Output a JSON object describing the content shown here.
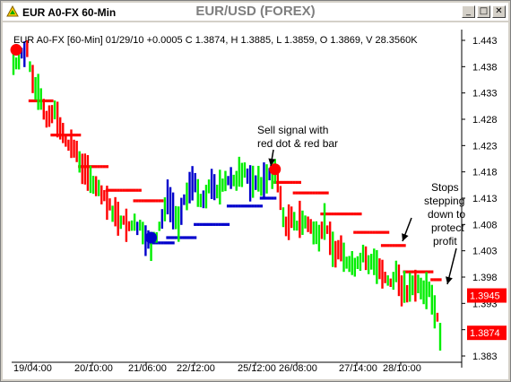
{
  "window": {
    "label": "EUR A0-FX 60-Min",
    "title": "EUR/USD (FOREX)",
    "buttons": {
      "minimize": "_",
      "maximize": "□",
      "close": "✕"
    }
  },
  "chart_data": {
    "type": "line",
    "info_line": "EUR A0-FX [60-Min] 01/29/10  +0.0005 C 1.3874, H 1.3885, L 1.3859, O 1.3869, V 28.3560K",
    "y_ticks": [
      "1.443",
      "1.438",
      "1.433",
      "1.428",
      "1.423",
      "1.418",
      "1.413",
      "1.408",
      "1.403",
      "1.398",
      "1.393",
      "1.388",
      "1.383"
    ],
    "ylim": [
      1.383,
      1.443
    ],
    "x_ticks": [
      "19/04:00",
      "20/10:00",
      "21/06:00",
      "22/12:00",
      "25/12:00",
      "26/08:00",
      "27/14:00",
      "28/10:00"
    ],
    "price_labels": [
      {
        "text": "1.3945",
        "value": 1.3945
      },
      {
        "text": "1.3874",
        "value": 1.3874
      }
    ],
    "annotations": [
      {
        "lines": [
          "Sell signal with",
          "red dot & red bar"
        ]
      },
      {
        "lines": [
          "Stops",
          "stepping",
          "down to",
          "protect",
          "profit"
        ]
      }
    ],
    "colors": {
      "up": "#00ee00",
      "down": "#ff0000",
      "neutral": "#0000cc",
      "stop_red": "#ff0000",
      "stop_blue": "#0000cc"
    },
    "price_path": [
      [
        0,
        1.4385
      ],
      [
        2,
        1.4395
      ],
      [
        4,
        1.4405
      ],
      [
        5,
        1.441
      ],
      [
        6,
        1.438
      ],
      [
        9,
        1.4325
      ],
      [
        12,
        1.4285
      ],
      [
        15,
        1.43
      ],
      [
        18,
        1.425
      ],
      [
        22,
        1.4225
      ],
      [
        26,
        1.418
      ],
      [
        30,
        1.415
      ],
      [
        34,
        1.412
      ],
      [
        38,
        1.4095
      ],
      [
        42,
        1.408
      ],
      [
        46,
        1.408
      ],
      [
        48,
        1.405
      ],
      [
        50,
        1.404
      ],
      [
        52,
        1.406
      ],
      [
        54,
        1.409
      ],
      [
        56,
        1.413
      ],
      [
        58,
        1.41
      ],
      [
        60,
        1.408
      ],
      [
        62,
        1.412
      ],
      [
        64,
        1.415
      ],
      [
        66,
        1.416
      ],
      [
        68,
        1.413
      ],
      [
        70,
        1.414
      ],
      [
        72,
        1.416
      ],
      [
        74,
        1.4145
      ],
      [
        76,
        1.4155
      ],
      [
        78,
        1.417
      ],
      [
        80,
        1.4165
      ],
      [
        82,
        1.4175
      ],
      [
        84,
        1.418
      ],
      [
        86,
        1.416
      ],
      [
        88,
        1.4165
      ],
      [
        90,
        1.4155
      ],
      [
        92,
        1.417
      ],
      [
        94,
        1.4175
      ],
      [
        95,
        1.418
      ],
      [
        97,
        1.413
      ],
      [
        99,
        1.407
      ],
      [
        101,
        1.41
      ],
      [
        103,
        1.408
      ],
      [
        105,
        1.409
      ],
      [
        107,
        1.408
      ],
      [
        109,
        1.407
      ],
      [
        111,
        1.406
      ],
      [
        113,
        1.408
      ],
      [
        115,
        1.405
      ],
      [
        117,
        1.403
      ],
      [
        119,
        1.404
      ],
      [
        121,
        1.401
      ],
      [
        123,
        1.4
      ],
      [
        125,
        1.401
      ],
      [
        127,
        1.402
      ],
      [
        129,
        1.4
      ],
      [
        131,
        1.401
      ],
      [
        133,
        1.4
      ],
      [
        135,
        1.398
      ],
      [
        137,
        1.397
      ],
      [
        139,
        1.399
      ],
      [
        141,
        1.396
      ],
      [
        143,
        1.395
      ],
      [
        145,
        1.396
      ],
      [
        147,
        1.3965
      ],
      [
        149,
        1.3955
      ],
      [
        151,
        1.395
      ],
      [
        153,
        1.392
      ],
      [
        154,
        1.39
      ],
      [
        155,
        1.3874
      ]
    ],
    "stop_steps": [
      {
        "from": 6,
        "to": 14,
        "value": 1.4315,
        "color": "red"
      },
      {
        "from": 14,
        "to": 24,
        "value": 1.425,
        "color": "red"
      },
      {
        "from": 24,
        "to": 34,
        "value": 1.419,
        "color": "red"
      },
      {
        "from": 34,
        "to": 46,
        "value": 1.4145,
        "color": "red"
      },
      {
        "from": 44,
        "to": 54,
        "value": 1.4125,
        "color": "red"
      },
      {
        "from": 50,
        "to": 58,
        "value": 1.4045,
        "color": "blue"
      },
      {
        "from": 56,
        "to": 66,
        "value": 1.4055,
        "color": "blue"
      },
      {
        "from": 66,
        "to": 78,
        "value": 1.408,
        "color": "blue"
      },
      {
        "from": 78,
        "to": 90,
        "value": 1.4115,
        "color": "blue"
      },
      {
        "from": 90,
        "to": 95,
        "value": 1.413,
        "color": "blue"
      },
      {
        "from": 95,
        "to": 104,
        "value": 1.416,
        "color": "red"
      },
      {
        "from": 102,
        "to": 114,
        "value": 1.414,
        "color": "red"
      },
      {
        "from": 112,
        "to": 126,
        "value": 1.41,
        "color": "red"
      },
      {
        "from": 124,
        "to": 136,
        "value": 1.4065,
        "color": "red"
      },
      {
        "from": 134,
        "to": 142,
        "value": 1.404,
        "color": "red"
      },
      {
        "from": 142,
        "to": 152,
        "value": 1.399,
        "color": "red"
      },
      {
        "from": 152,
        "to": 155,
        "value": 1.3975,
        "color": "red"
      }
    ],
    "signals": [
      {
        "x": 1,
        "value": 1.4412,
        "color": "red"
      },
      {
        "x": 50,
        "value": 1.4055,
        "color": "blue"
      },
      {
        "x": 95,
        "value": 1.4185,
        "color": "red"
      }
    ]
  }
}
